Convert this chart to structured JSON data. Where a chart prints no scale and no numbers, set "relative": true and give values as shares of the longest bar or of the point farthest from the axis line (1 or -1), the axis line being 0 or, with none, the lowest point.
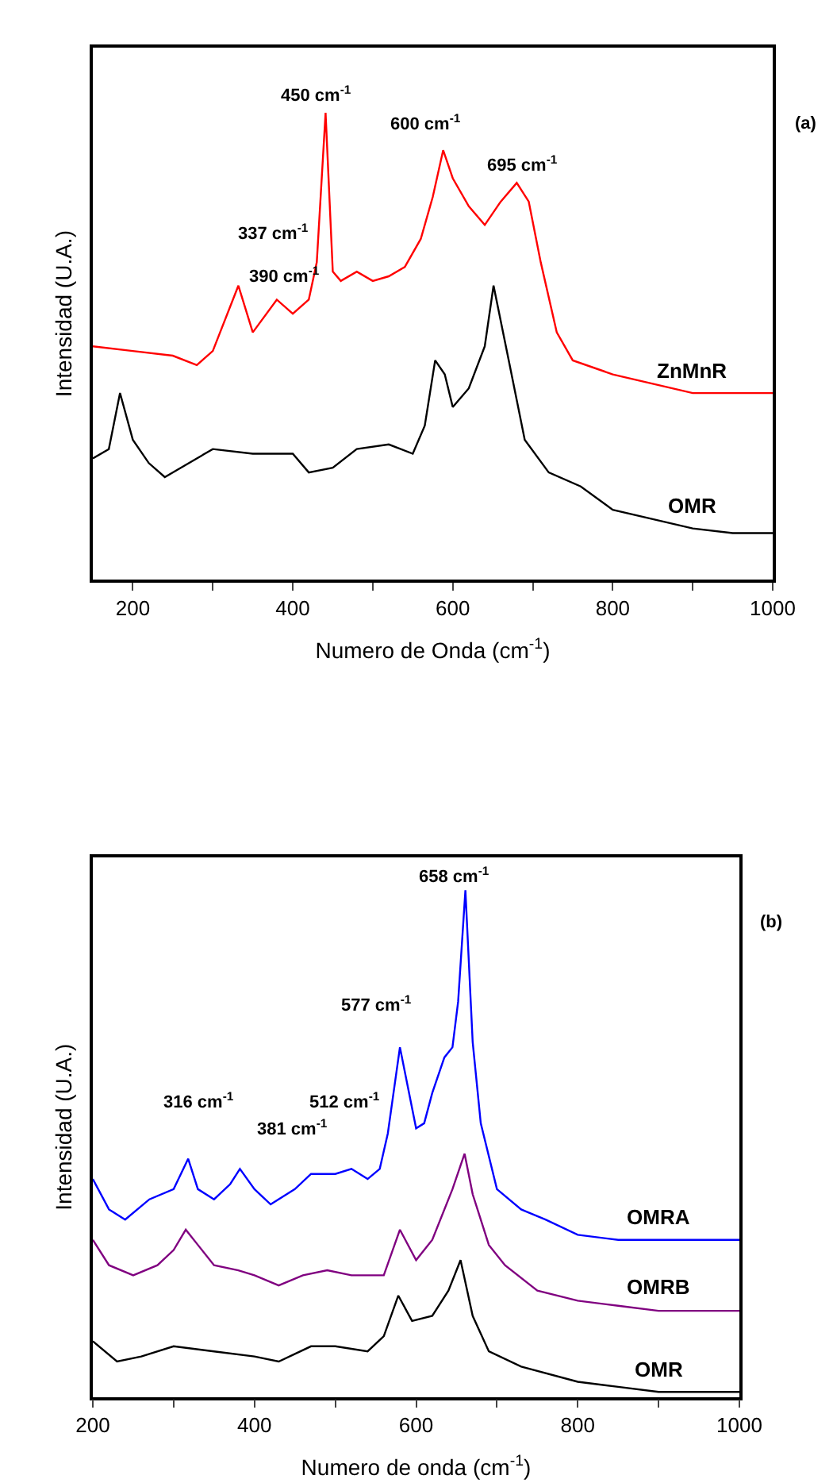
{
  "chart_data": [
    {
      "type": "line",
      "relative": true,
      "xlabel": "Numero de Onda (cm$^{-1}$)",
      "ylabel": "Intensidad (U.A.)",
      "xlim": [
        150,
        1000
      ],
      "xticks": [
        200,
        {
          "value": 300,
          "label": null
        },
        400,
        {
          "value": 500,
          "label": null
        },
        600,
        {
          "value": 700,
          "label": null
        },
        800,
        {
          "value": 900,
          "label": null
        },
        1000
      ],
      "tick_labels": "x",
      "legend": false,
      "marker": "none",
      "line_style": "solid",
      "series": [
        {
          "name": "ZnMnR",
          "color": "#ff0000",
          "x": [
            150,
            200,
            250,
            280,
            300,
            332,
            350,
            380,
            400,
            420,
            430,
            441,
            450,
            460,
            480,
            500,
            520,
            540,
            560,
            575,
            588,
            600,
            620,
            640,
            660,
            680,
            695,
            710,
            730,
            750,
            800,
            850,
            900,
            950,
            1000
          ],
          "values": [
            0.5,
            0.49,
            0.48,
            0.46,
            0.49,
            0.63,
            0.53,
            0.6,
            0.57,
            0.6,
            0.68,
            1.0,
            0.66,
            0.64,
            0.66,
            0.64,
            0.65,
            0.67,
            0.73,
            0.82,
            0.92,
            0.86,
            0.8,
            0.76,
            0.81,
            0.85,
            0.81,
            0.68,
            0.53,
            0.47,
            0.44,
            0.42,
            0.4,
            0.4,
            0.4
          ]
        },
        {
          "name": "OMR",
          "color": "#000000",
          "x": [
            150,
            170,
            184,
            200,
            220,
            240,
            260,
            300,
            350,
            400,
            420,
            450,
            480,
            520,
            550,
            565,
            578,
            590,
            600,
            620,
            640,
            651,
            670,
            690,
            720,
            760,
            800,
            850,
            900,
            950,
            1000
          ],
          "values": [
            0.26,
            0.28,
            0.4,
            0.3,
            0.25,
            0.22,
            0.24,
            0.28,
            0.27,
            0.27,
            0.23,
            0.24,
            0.28,
            0.29,
            0.27,
            0.33,
            0.47,
            0.44,
            0.37,
            0.41,
            0.5,
            0.63,
            0.47,
            0.3,
            0.23,
            0.2,
            0.15,
            0.13,
            0.11,
            0.1,
            0.1
          ]
        }
      ],
      "annotations": [
        "337 cm$^{-1}$",
        "390 cm$^{-1}$",
        "450 cm$^{-1}$",
        "600 cm$^{-1}$",
        "695 cm$^{-1}$",
        "(a)"
      ]
    },
    {
      "type": "line",
      "relative": true,
      "xlabel": "Numero de onda (cm$^{-1}$)",
      "ylabel": "Intensidad (U.A.)",
      "xlim": [
        200,
        1000
      ],
      "xticks": [
        200,
        {
          "value": 300,
          "label": null
        },
        400,
        {
          "value": 500,
          "label": null
        },
        600,
        {
          "value": 700,
          "label": null
        },
        800,
        {
          "value": 900,
          "label": null
        },
        1000
      ],
      "tick_labels": "x",
      "legend": false,
      "marker": "none",
      "line_style": "solid",
      "series": [
        {
          "name": "OMRA",
          "color": "#0000ff",
          "x": [
            200,
            220,
            240,
            270,
            300,
            318,
            330,
            350,
            370,
            382,
            400,
            420,
            450,
            470,
            500,
            520,
            540,
            555,
            565,
            580,
            590,
            600,
            610,
            620,
            635,
            645,
            652,
            661,
            670,
            680,
            700,
            730,
            760,
            800,
            850,
            900,
            950,
            1000
          ],
          "values": [
            0.43,
            0.37,
            0.35,
            0.39,
            0.41,
            0.47,
            0.41,
            0.39,
            0.42,
            0.45,
            0.41,
            0.38,
            0.41,
            0.44,
            0.44,
            0.45,
            0.43,
            0.45,
            0.52,
            0.69,
            0.61,
            0.53,
            0.54,
            0.6,
            0.67,
            0.69,
            0.78,
            1.0,
            0.7,
            0.54,
            0.41,
            0.37,
            0.35,
            0.32,
            0.31,
            0.31,
            0.31,
            0.31
          ]
        },
        {
          "name": "OMRB",
          "color": "#800080",
          "x": [
            200,
            220,
            250,
            280,
            300,
            315,
            330,
            350,
            380,
            400,
            430,
            460,
            490,
            520,
            560,
            580,
            600,
            620,
            645,
            660,
            670,
            690,
            710,
            750,
            800,
            850,
            900,
            950,
            1000
          ],
          "values": [
            0.31,
            0.26,
            0.24,
            0.26,
            0.29,
            0.33,
            0.3,
            0.26,
            0.25,
            0.24,
            0.22,
            0.24,
            0.25,
            0.24,
            0.24,
            0.33,
            0.27,
            0.31,
            0.41,
            0.48,
            0.4,
            0.3,
            0.26,
            0.21,
            0.19,
            0.18,
            0.17,
            0.17,
            0.17
          ]
        },
        {
          "name": "OMR",
          "color": "#000000",
          "x": [
            200,
            230,
            260,
            300,
            350,
            400,
            430,
            470,
            500,
            540,
            560,
            578,
            595,
            620,
            640,
            655,
            670,
            690,
            730,
            800,
            850,
            900,
            1000
          ],
          "values": [
            0.11,
            0.07,
            0.08,
            0.1,
            0.09,
            0.08,
            0.07,
            0.1,
            0.1,
            0.09,
            0.12,
            0.2,
            0.15,
            0.16,
            0.21,
            0.27,
            0.16,
            0.09,
            0.06,
            0.03,
            0.02,
            0.01,
            0.01
          ]
        }
      ],
      "annotations": [
        "316 cm$^{-1}$",
        "381 cm$^{-1}$",
        "512 cm$^{-1}$",
        "577 cm$^{-1}$",
        "658 cm$^{-1}$",
        "(b)"
      ]
    }
  ]
}
